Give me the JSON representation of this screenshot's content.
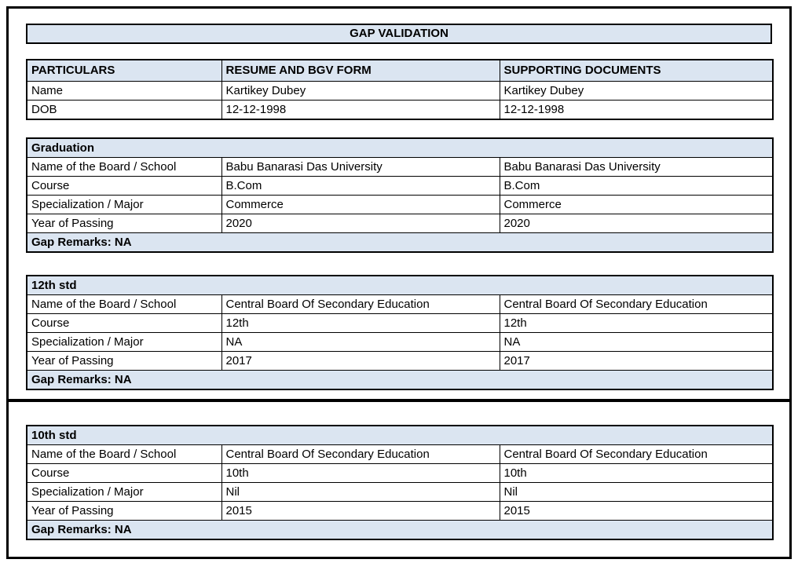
{
  "title": "GAP VALIDATION",
  "particulars": {
    "headers": [
      "PARTICULARS",
      "RESUME AND BGV FORM",
      "SUPPORTING DOCUMENTS"
    ],
    "rows": [
      {
        "label": "Name",
        "resume": "Kartikey Dubey",
        "supporting": "Kartikey Dubey"
      },
      {
        "label": "DOB",
        "resume": "12-12-1998",
        "supporting": "12-12-1998"
      }
    ]
  },
  "sections": [
    {
      "title": "Graduation",
      "rows": [
        {
          "label": "Name of the Board / School",
          "resume": "Babu Banarasi Das University",
          "supporting": "Babu Banarasi Das University"
        },
        {
          "label": "Course",
          "resume": "B.Com",
          "supporting": "B.Com"
        },
        {
          "label": "Specialization / Major",
          "resume": "Commerce",
          "supporting": "Commerce"
        },
        {
          "label": "Year of Passing",
          "resume": "2020",
          "supporting": "2020"
        }
      ],
      "gap_remarks": "Gap Remarks: NA"
    },
    {
      "title": "12th std",
      "rows": [
        {
          "label": "Name of the Board / School",
          "resume": "Central Board Of Secondary Education",
          "supporting": "Central Board Of Secondary Education"
        },
        {
          "label": "Course",
          "resume": "12th",
          "supporting": "12th"
        },
        {
          "label": "Specialization / Major",
          "resume": "NA",
          "supporting": "NA"
        },
        {
          "label": "Year of Passing",
          "resume": "2017",
          "supporting": "2017"
        }
      ],
      "gap_remarks": "Gap Remarks: NA"
    },
    {
      "title": "10th std",
      "rows": [
        {
          "label": "Name of the Board / School",
          "resume": "Central Board Of Secondary Education",
          "supporting": "Central Board Of Secondary Education"
        },
        {
          "label": "Course",
          "resume": "10th",
          "supporting": "10th"
        },
        {
          "label": "Specialization / Major",
          "resume": "Nil",
          "supporting": "Nil"
        },
        {
          "label": "Year of Passing",
          "resume": "2015",
          "supporting": "2015"
        }
      ],
      "gap_remarks": "Gap Remarks: NA"
    }
  ],
  "colors": {
    "header_fill": "#dbe5f1",
    "border": "#000000",
    "text": "#000000",
    "background": "#ffffff"
  }
}
